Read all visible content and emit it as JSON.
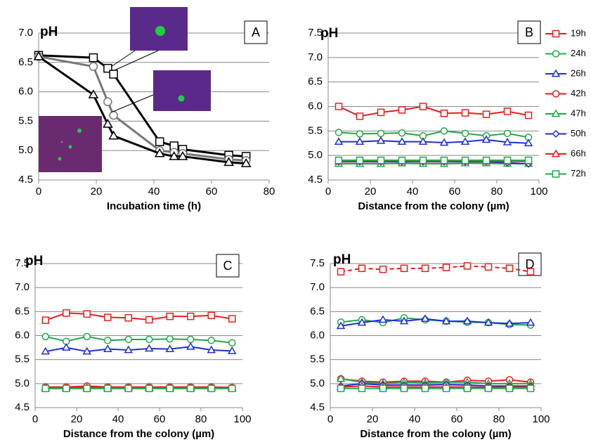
{
  "chart_data": [
    {
      "type": "line",
      "panel_label": "A",
      "y_label": "pH",
      "x_label": "Incubation time (h)",
      "x": [
        0,
        19,
        24,
        26,
        42,
        47,
        50,
        66,
        72
      ],
      "xlim": [
        0,
        80
      ],
      "xticks": [
        0,
        20,
        40,
        60,
        80
      ],
      "ylim": [
        4.5,
        7
      ],
      "yticks": [
        4.5,
        {
          "value": 5,
          "label": "5.0"
        },
        5.5,
        {
          "value": 6,
          "label": "6.0"
        },
        6.5,
        {
          "value": 7,
          "label": "7.0"
        }
      ],
      "grid": true,
      "series": [
        {
          "color": "#000000",
          "marker": "square",
          "values": [
            6.62,
            6.58,
            6.4,
            6.3,
            5.15,
            5.08,
            5.02,
            4.92,
            4.9
          ]
        },
        {
          "color": "#777777",
          "marker": "circle",
          "values": [
            6.6,
            6.43,
            5.83,
            5.6,
            5.0,
            4.97,
            4.95,
            4.85,
            4.83
          ]
        },
        {
          "color": "#000000",
          "marker": "triangle",
          "values": [
            6.6,
            5.95,
            5.45,
            5.25,
            4.95,
            4.9,
            4.9,
            4.8,
            4.78
          ]
        }
      ]
    },
    {
      "type": "line",
      "panel_label": "B",
      "y_label": "pH",
      "x_label": "Distance from the colony (µm)",
      "x": [
        5,
        15,
        25,
        35,
        45,
        55,
        65,
        75,
        85,
        95
      ],
      "xlim": [
        0,
        100
      ],
      "xticks": [
        0,
        20,
        40,
        60,
        80,
        100
      ],
      "ylim": [
        4.5,
        7.5
      ],
      "yticks": [
        4.5,
        {
          "value": 5,
          "label": "5.0"
        },
        5.5,
        {
          "value": 6,
          "label": "6.0"
        },
        6.5,
        {
          "value": 7,
          "label": "7.0"
        },
        7.5
      ],
      "grid": true,
      "legend": "right",
      "series": [
        {
          "name": "19h",
          "color": "#ee1c1c",
          "marker": "square",
          "values": [
            6.0,
            5.8,
            5.88,
            5.93,
            6.0,
            5.86,
            5.87,
            5.84,
            5.9,
            5.82
          ]
        },
        {
          "name": "24h",
          "color": "#21a849",
          "marker": "circle",
          "values": [
            5.47,
            5.44,
            5.45,
            5.46,
            5.4,
            5.5,
            5.45,
            5.4,
            5.45,
            5.37
          ]
        },
        {
          "name": "26h",
          "color": "#1f2fd6",
          "marker": "triangle",
          "values": [
            5.28,
            5.28,
            5.3,
            5.28,
            5.28,
            5.26,
            5.28,
            5.32,
            5.27,
            5.25
          ]
        },
        {
          "name": "42h",
          "color": "#ee1c1c",
          "marker": "circle",
          "values": [
            4.9,
            4.9,
            4.9,
            4.9,
            4.9,
            4.9,
            4.9,
            4.9,
            4.9,
            4.88
          ]
        },
        {
          "name": "47h",
          "color": "#21a849",
          "marker": "triangle",
          "values": [
            4.83,
            4.83,
            4.83,
            4.84,
            4.83,
            4.83,
            4.84,
            4.84,
            4.83,
            4.83
          ]
        },
        {
          "name": "50h",
          "color": "#1f2fd6",
          "marker": "diamond",
          "values": [
            4.87,
            4.87,
            4.87,
            4.87,
            4.87,
            4.87,
            4.87,
            4.87,
            4.85,
            4.83
          ]
        },
        {
          "name": "66h",
          "color": "#ee1c1c",
          "marker": "triangle",
          "values": [
            4.88,
            4.88,
            4.88,
            4.88,
            4.88,
            4.88,
            4.88,
            4.88,
            4.88,
            4.88
          ]
        },
        {
          "name": "72h",
          "color": "#21a849",
          "marker": "square",
          "values": [
            4.9,
            4.9,
            4.9,
            4.9,
            4.9,
            4.9,
            4.9,
            4.9,
            4.9,
            4.9
          ]
        }
      ]
    },
    {
      "type": "line",
      "panel_label": "C",
      "y_label": "pH",
      "x_label": "Distance from the colony (µm)",
      "x": [
        5,
        15,
        25,
        35,
        45,
        55,
        65,
        75,
        85,
        95
      ],
      "xlim": [
        0,
        100
      ],
      "xticks": [
        0,
        20,
        40,
        60,
        80,
        100
      ],
      "ylim": [
        4.5,
        7.5
      ],
      "yticks": [
        4.5,
        {
          "value": 5,
          "label": "5.0"
        },
        5.5,
        {
          "value": 6,
          "label": "6.0"
        },
        6.5,
        {
          "value": 7,
          "label": "7.0"
        },
        7.5
      ],
      "grid": true,
      "series": [
        {
          "color": "#ee1c1c",
          "marker": "square",
          "values": [
            6.32,
            6.47,
            6.45,
            6.38,
            6.37,
            6.33,
            6.4,
            6.4,
            6.42,
            6.35
          ]
        },
        {
          "color": "#21a849",
          "marker": "circle",
          "values": [
            5.98,
            5.88,
            5.98,
            5.9,
            5.92,
            5.92,
            5.93,
            5.92,
            5.9,
            5.85
          ]
        },
        {
          "color": "#1f2fd6",
          "marker": "triangle",
          "values": [
            5.67,
            5.75,
            5.67,
            5.72,
            5.7,
            5.73,
            5.72,
            5.77,
            5.7,
            5.68
          ]
        },
        {
          "color": "#ee1c1c",
          "marker": "circle",
          "values": [
            4.93,
            4.93,
            4.95,
            4.93,
            4.93,
            4.93,
            4.93,
            4.93,
            4.93,
            4.92
          ]
        },
        {
          "color": "#21a849",
          "marker": "triangle",
          "values": [
            4.9,
            4.9,
            4.9,
            4.9,
            4.9,
            4.9,
            4.9,
            4.9,
            4.9,
            4.9
          ]
        },
        {
          "color": "#1f2fd6",
          "marker": "diamond",
          "values": [
            4.9,
            4.9,
            4.9,
            4.9,
            4.9,
            4.9,
            4.9,
            4.9,
            4.9,
            4.9
          ]
        },
        {
          "color": "#ee1c1c",
          "marker": "triangle",
          "values": [
            4.92,
            4.92,
            4.92,
            4.92,
            4.92,
            4.92,
            4.92,
            4.92,
            4.92,
            4.92
          ]
        },
        {
          "color": "#21a849",
          "marker": "square",
          "values": [
            4.9,
            4.9,
            4.9,
            4.9,
            4.9,
            4.9,
            4.9,
            4.9,
            4.9,
            4.9
          ]
        }
      ]
    },
    {
      "type": "line",
      "panel_label": "D",
      "y_label": "pH",
      "x_label": "Distance from the colony (µm)",
      "x": [
        5,
        15,
        25,
        35,
        45,
        55,
        65,
        75,
        85,
        95
      ],
      "xlim": [
        0,
        100
      ],
      "xticks": [
        0,
        20,
        40,
        60,
        80,
        100
      ],
      "ylim": [
        4.5,
        7.5
      ],
      "yticks": [
        4.5,
        {
          "value": 5,
          "label": "5.0"
        },
        5.5,
        {
          "value": 6,
          "label": "6.0"
        },
        6.5,
        {
          "value": 7,
          "label": "7.0"
        },
        7.5
      ],
      "grid": true,
      "series": [
        {
          "color": "#ee1c1c",
          "marker": "square",
          "dashed": true,
          "values": [
            7.33,
            7.4,
            7.38,
            7.4,
            7.4,
            7.42,
            7.45,
            7.43,
            7.4,
            7.33
          ]
        },
        {
          "color": "#21a849",
          "marker": "circle",
          "values": [
            6.28,
            6.33,
            6.27,
            6.37,
            6.33,
            6.3,
            6.28,
            6.27,
            6.23,
            6.22
          ]
        },
        {
          "color": "#1f2fd6",
          "marker": "triangle",
          "values": [
            6.2,
            6.27,
            6.33,
            6.3,
            6.35,
            6.3,
            6.3,
            6.27,
            6.25,
            6.27
          ]
        },
        {
          "color": "#ee1c1c",
          "marker": "circle",
          "values": [
            5.1,
            5.05,
            5.03,
            5.05,
            5.05,
            5.03,
            5.07,
            5.05,
            5.08,
            5.03
          ]
        },
        {
          "color": "#21a849",
          "marker": "triangle",
          "values": [
            5.1,
            5.03,
            5.0,
            5.03,
            5.02,
            5.03,
            5.03,
            5.0,
            5.0,
            5.0
          ]
        },
        {
          "color": "#1f2fd6",
          "marker": "diamond",
          "values": [
            4.95,
            5.0,
            4.97,
            4.97,
            4.97,
            4.98,
            4.97,
            4.95,
            4.95,
            4.95
          ]
        },
        {
          "color": "#ee1c1c",
          "marker": "triangle",
          "values": [
            4.93,
            4.95,
            4.93,
            4.93,
            4.93,
            4.93,
            4.93,
            4.92,
            4.93,
            4.93
          ]
        },
        {
          "color": "#21a849",
          "marker": "square",
          "values": [
            4.9,
            4.9,
            4.9,
            4.9,
            4.9,
            4.9,
            4.9,
            4.9,
            4.9,
            4.9
          ]
        }
      ]
    }
  ]
}
